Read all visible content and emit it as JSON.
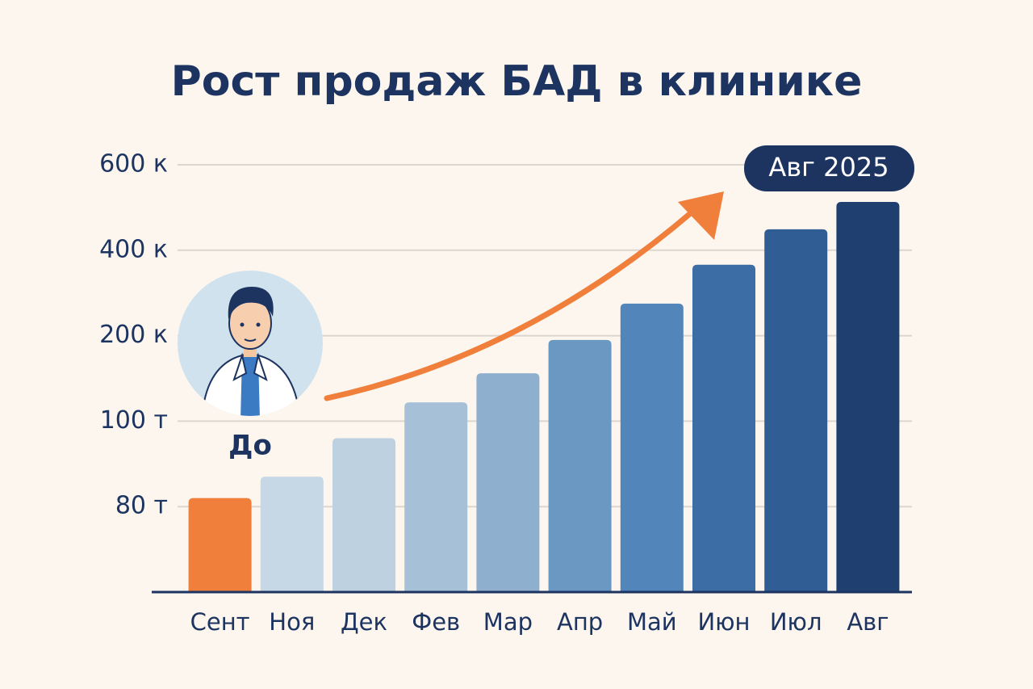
{
  "chart_data": {
    "type": "bar",
    "title": "Рост продаж БАД в клинике",
    "categories": [
      "Сент",
      "Ноя",
      "Дек",
      "Фев",
      "Мар",
      "Апр",
      "Май",
      "Июн",
      "Июл",
      "Авг"
    ],
    "values": [
      82000,
      87000,
      96000,
      122000,
      156000,
      195000,
      275000,
      366000,
      449000,
      513000
    ],
    "colors": [
      "#f07f3c",
      "#c6d7e5",
      "#bdd1e1",
      "#a6c0d8",
      "#8eafce",
      "#6b98c3",
      "#5285ba",
      "#3c6da5",
      "#305d94",
      "#1f3f70"
    ],
    "ylim": [
      60000,
      600000
    ],
    "yticks": [
      {
        "value": 80000,
        "label": "80 т"
      },
      {
        "value": 100000,
        "label": "100 т"
      },
      {
        "value": 200000,
        "label": "200 к"
      },
      {
        "value": 400000,
        "label": "400 к"
      },
      {
        "value": 600000,
        "label": "600 к"
      }
    ],
    "grid": true,
    "annotations": {
      "badge": "Авг 2025",
      "before": "До"
    }
  }
}
